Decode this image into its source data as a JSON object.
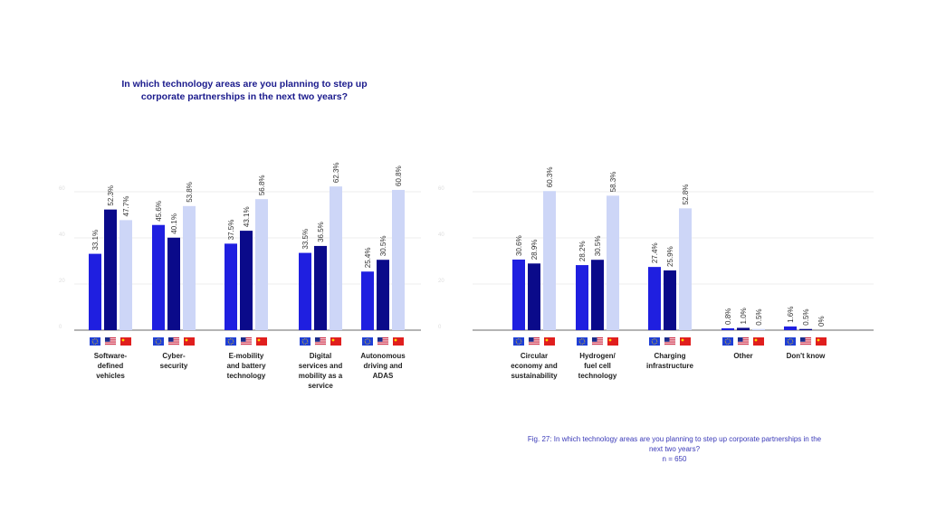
{
  "title_line1": "In which technology areas are you planning to step up",
  "title_line2": "corporate partnerships in the next two years?",
  "caption": {
    "line1": "Fig. 27: In which technology areas are you planning to step up corporate partnerships in the",
    "line2": "next two years?",
    "line3": "n = 650"
  },
  "colors": {
    "eu": "#1f1fe0",
    "us": "#0a0a8a",
    "cn": "#cdd6f7",
    "axis": "#888888",
    "grid": "#eeeeee",
    "text": "#222222"
  },
  "chart_data": [
    {
      "type": "bar",
      "ylim": [
        0,
        60
      ],
      "yticks": [
        0,
        20,
        40,
        60
      ],
      "grid": true,
      "legend": "flag icons under each category",
      "categories": [
        "Software-defined vehicles",
        "Cyber-security",
        "E-mobility and battery technology",
        "Digital services and mobility as a service",
        "Autonomous driving and ADAS"
      ],
      "category_lines": [
        [
          "Software-",
          "defined",
          "vehicles"
        ],
        [
          "Cyber-",
          "security"
        ],
        [
          "E-mobility",
          "and battery",
          "technology"
        ],
        [
          "Digital",
          "services and",
          "mobility as a",
          "service"
        ],
        [
          "Autonomous",
          "driving and",
          "ADAS"
        ]
      ],
      "series": [
        {
          "key": "eu",
          "values": [
            33.1,
            45.6,
            37.5,
            33.5,
            25.4
          ],
          "labels": [
            "33.1%",
            "45.6%",
            "37.5%",
            "33.5%",
            "25.4%"
          ]
        },
        {
          "key": "us",
          "values": [
            52.3,
            40.1,
            43.1,
            36.5,
            30.5
          ],
          "labels": [
            "52.3%",
            "40.1%",
            "43.1%",
            "36.5%",
            "30.5%"
          ]
        },
        {
          "key": "cn",
          "values": [
            47.7,
            53.8,
            56.8,
            62.3,
            60.8
          ],
          "labels": [
            "47.7%",
            "53.8%",
            "56.8%",
            "62.3%",
            "60.8%"
          ]
        }
      ]
    },
    {
      "type": "bar",
      "ylim": [
        0,
        60
      ],
      "yticks": [
        0,
        20,
        40,
        60
      ],
      "grid": true,
      "legend": "flag icons under each category",
      "categories": [
        "Circular economy and sustainability",
        "Hydrogen/ fuel cell technology",
        "Charging infrastructure",
        "Other",
        "Don't know"
      ],
      "category_lines": [
        [
          "Circular",
          "economy and",
          "sustainability"
        ],
        [
          "Hydrogen/",
          "fuel cell",
          "technology"
        ],
        [
          "Charging",
          "infrastructure"
        ],
        [
          "Other"
        ],
        [
          "Don't know"
        ]
      ],
      "series": [
        {
          "key": "eu",
          "values": [
            30.6,
            28.2,
            27.4,
            0.8,
            1.6
          ],
          "labels": [
            "30.6%",
            "28.2%",
            "27.4%",
            "0.8%",
            "1.6%"
          ]
        },
        {
          "key": "us",
          "values": [
            28.9,
            30.5,
            25.9,
            1.0,
            0.5
          ],
          "labels": [
            "28.9%",
            "30.5%",
            "25.9%",
            "1.0%",
            "0.5%"
          ]
        },
        {
          "key": "cn",
          "values": [
            60.3,
            58.3,
            52.8,
            0.5,
            0
          ],
          "labels": [
            "60.3%",
            "58.3%",
            "52.8%",
            "0.5%",
            "0%"
          ]
        }
      ]
    }
  ]
}
